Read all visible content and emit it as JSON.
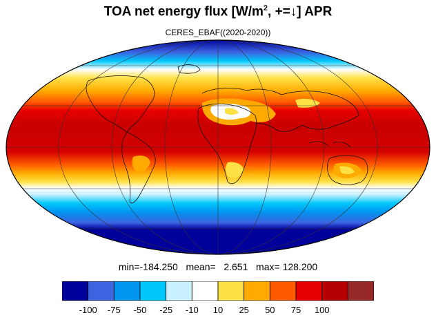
{
  "header": {
    "title_prefix": "TOA net energy flux  [W/m",
    "title_sup": "2",
    "title_suffix": ", +=↓] APR",
    "subtitle": "CERES_EBAF((2020-2020))"
  },
  "stats": {
    "text": "min=-184.250   mean=   2.651   max= 128.200",
    "min": -184.25,
    "mean": 2.651,
    "max": 128.2
  },
  "colorbar": {
    "labels": [
      "-100",
      "-75",
      "-50",
      "-25",
      "-10",
      "10",
      "25",
      "50",
      "75",
      "100"
    ],
    "colors": [
      "#00009b",
      "#3c64e1",
      "#0096f0",
      "#00c8fa",
      "#c8f0ff",
      "#ffffff",
      "#ffe146",
      "#ffaa00",
      "#ff5a00",
      "#e60000",
      "#b40000",
      "#962828"
    ]
  },
  "map": {
    "projection": "mollweide",
    "outline_color": "#000000",
    "coast_color": "#111111"
  }
}
